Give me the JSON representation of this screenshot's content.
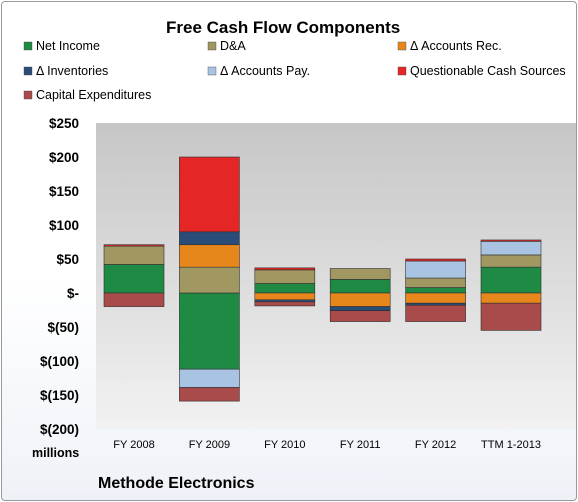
{
  "chart_data": {
    "type": "bar",
    "stacked": true,
    "title": "Free Cash Flow Components",
    "categories": [
      "FY 2008",
      "FY 2009",
      "FY 2010",
      "FY 2011",
      "FY 2012",
      "TTM 1-2013"
    ],
    "series": [
      {
        "name": "Net Income",
        "color": "#1e8a44",
        "values": [
          42,
          -112,
          14,
          20,
          8,
          38
        ]
      },
      {
        "name": "D&A",
        "color": "#a09761",
        "values": [
          27,
          38,
          20,
          16,
          14,
          18
        ]
      },
      {
        "name": "Δ Accounts Rec.",
        "color": "#e7861b",
        "values": [
          0,
          33,
          -10,
          -20,
          -15,
          -15
        ]
      },
      {
        "name": "Δ Inventories",
        "color": "#2a4c78",
        "values": [
          0,
          19,
          -3,
          -6,
          -3,
          0
        ]
      },
      {
        "name": "Δ Accounts Pay.",
        "color": "#a9c4e2",
        "values": [
          0,
          -27,
          0,
          0,
          25,
          20
        ]
      },
      {
        "name": "Questionable Cash Sources",
        "color": "#e52626",
        "values": [
          2,
          110,
          3,
          0,
          3,
          2
        ]
      },
      {
        "name": "Capital Expenditures",
        "color": "#a94a4b",
        "values": [
          -20,
          -20,
          -6,
          -16,
          -24,
          -40
        ]
      }
    ],
    "yticks": [
      "$250",
      "$200",
      "$150",
      "$100",
      "$50",
      "$-",
      "$(50)",
      "$(100)",
      "$(150)",
      "$(200)"
    ],
    "ylim": [
      -200,
      250
    ],
    "ylabel": "millions",
    "grid": false,
    "legend_position": "top"
  },
  "footer": {
    "company": "Methode Electronics"
  }
}
